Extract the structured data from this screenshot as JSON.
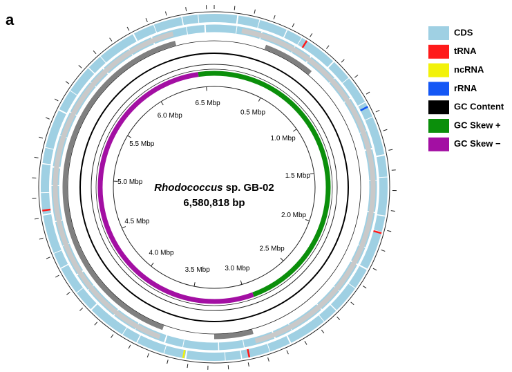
{
  "panel_label": "a",
  "genome": {
    "genus": "Rhodococcus",
    "strain": "sp. GB-02",
    "length": {
      "value": 6.580818,
      "label": "6,580,818 bp"
    }
  },
  "scale_ticks": [
    {
      "value": 0.5,
      "label": "0.5 Mbp"
    },
    {
      "value": 1.0,
      "label": "1.0 Mbp"
    },
    {
      "value": 1.5,
      "label": "1.5 Mbp"
    },
    {
      "value": 2.0,
      "label": "2.0 Mbp"
    },
    {
      "value": 2.5,
      "label": "2.5 Mbp"
    },
    {
      "value": 3.0,
      "label": "3.0 Mbp"
    },
    {
      "value": 3.5,
      "label": "3.5 Mbp"
    },
    {
      "value": 4.0,
      "label": "4.0 Mbp"
    },
    {
      "value": 4.5,
      "label": "4.5 Mbp"
    },
    {
      "value": 5.0,
      "label": "5.0 Mbp"
    },
    {
      "value": 5.5,
      "label": "5.5 Mbp"
    },
    {
      "value": 6.0,
      "label": "6.0 Mbp"
    },
    {
      "value": 6.5,
      "label": "6.5 Mbp"
    }
  ],
  "legend": [
    {
      "label": "CDS",
      "color": "#9fd0e3"
    },
    {
      "label": "tRNA",
      "color": "#ff1a1a"
    },
    {
      "label": "ncRNA",
      "color": "#f2f20a"
    },
    {
      "label": "rRNA",
      "color": "#1457f5"
    },
    {
      "label": "GC Content",
      "color": "#000000"
    },
    {
      "label": "GC Skew +",
      "color": "#0b8f0b"
    },
    {
      "label": "GC Skew −",
      "color": "#a30fa3"
    }
  ]
}
